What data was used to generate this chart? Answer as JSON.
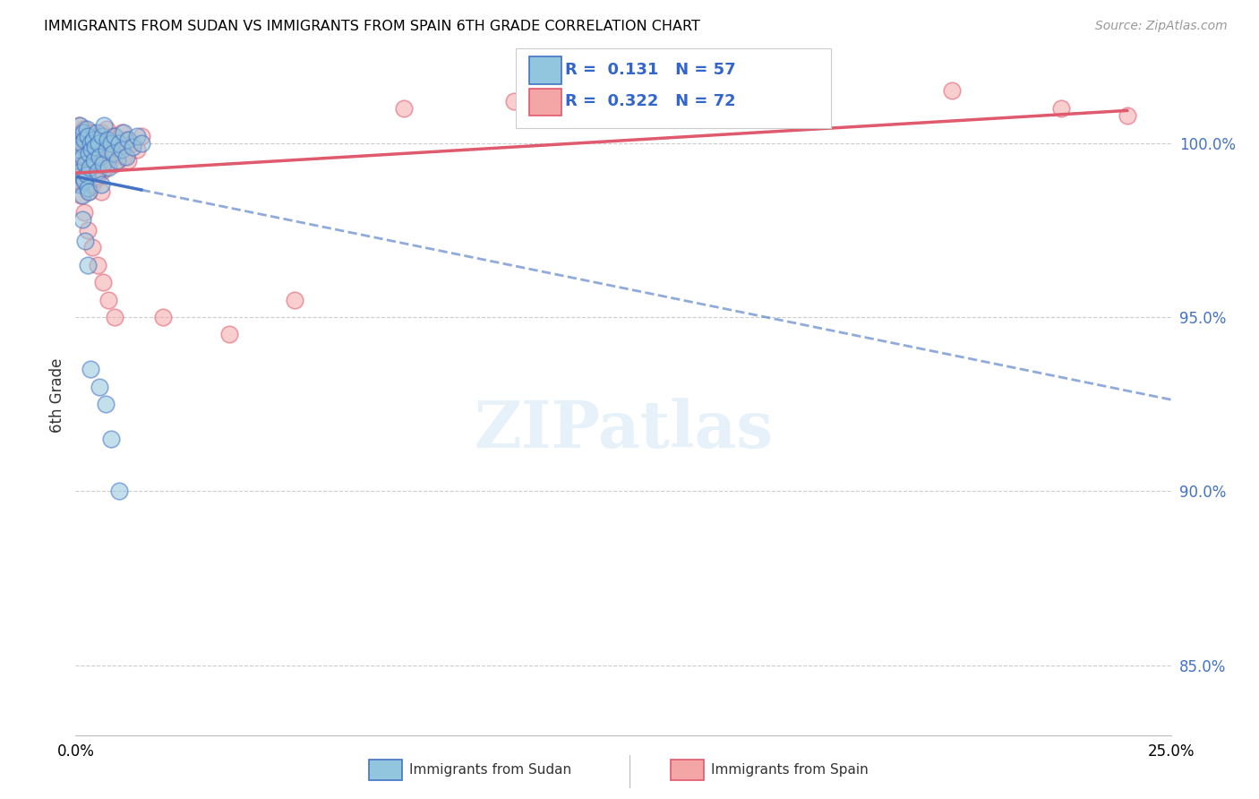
{
  "title": "IMMIGRANTS FROM SUDAN VS IMMIGRANTS FROM SPAIN 6TH GRADE CORRELATION CHART",
  "source": "Source: ZipAtlas.com",
  "ylabel": "6th Grade",
  "xlim": [
    0.0,
    25.0
  ],
  "ylim": [
    83.0,
    102.5
  ],
  "yticks": [
    85.0,
    90.0,
    95.0,
    100.0
  ],
  "ytick_labels": [
    "85.0%",
    "90.0%",
    "95.0%",
    "100.0%"
  ],
  "R_sudan": 0.131,
  "N_sudan": 57,
  "R_spain": 0.322,
  "N_spain": 72,
  "color_sudan": "#92c5de",
  "color_spain": "#f4a6a6",
  "color_sudan_line": "#4472c4",
  "color_spain_line": "#e05a6e",
  "legend_sudan": "Immigrants from Sudan",
  "legend_spain": "Immigrants from Spain",
  "sudan_x": [
    0.05,
    0.07,
    0.08,
    0.1,
    0.1,
    0.12,
    0.13,
    0.15,
    0.15,
    0.17,
    0.18,
    0.2,
    0.2,
    0.22,
    0.25,
    0.25,
    0.27,
    0.28,
    0.3,
    0.3,
    0.32,
    0.35,
    0.37,
    0.4,
    0.42,
    0.45,
    0.48,
    0.5,
    0.52,
    0.55,
    0.58,
    0.6,
    0.63,
    0.65,
    0.7,
    0.72,
    0.75,
    0.8,
    0.85,
    0.9,
    0.95,
    1.0,
    1.05,
    1.1,
    1.15,
    1.2,
    1.3,
    1.4,
    1.5,
    0.15,
    0.22,
    0.28,
    0.35,
    0.55,
    0.68,
    0.8,
    1.0
  ],
  "sudan_y": [
    99.5,
    100.2,
    99.8,
    100.5,
    98.8,
    99.2,
    100.0,
    99.6,
    98.5,
    100.3,
    99.0,
    100.1,
    98.9,
    99.4,
    100.4,
    99.1,
    98.7,
    100.2,
    99.7,
    98.6,
    99.3,
    100.0,
    99.8,
    100.1,
    99.5,
    99.9,
    100.3,
    99.2,
    100.0,
    99.6,
    98.8,
    100.2,
    99.4,
    100.5,
    99.8,
    100.1,
    99.3,
    100.0,
    99.7,
    100.2,
    99.5,
    100.0,
    99.8,
    100.3,
    99.6,
    100.1,
    99.9,
    100.2,
    100.0,
    97.8,
    97.2,
    96.5,
    93.5,
    93.0,
    92.5,
    91.5,
    90.0
  ],
  "spain_x": [
    0.03,
    0.05,
    0.07,
    0.08,
    0.1,
    0.1,
    0.12,
    0.13,
    0.15,
    0.15,
    0.17,
    0.18,
    0.2,
    0.2,
    0.22,
    0.25,
    0.25,
    0.27,
    0.28,
    0.3,
    0.3,
    0.32,
    0.35,
    0.37,
    0.4,
    0.42,
    0.45,
    0.48,
    0.5,
    0.52,
    0.55,
    0.58,
    0.6,
    0.63,
    0.65,
    0.7,
    0.72,
    0.75,
    0.8,
    0.85,
    0.9,
    0.95,
    1.0,
    1.05,
    1.1,
    1.15,
    1.2,
    1.3,
    1.4,
    1.5,
    0.12,
    0.2,
    0.28,
    0.38,
    0.5,
    0.62,
    0.75,
    0.9,
    0.18,
    0.28,
    0.38,
    0.48,
    0.58,
    0.68,
    2.0,
    3.5,
    5.0,
    7.5,
    10.0,
    20.0,
    22.5,
    24.0
  ],
  "spain_y": [
    100.2,
    99.8,
    100.5,
    99.5,
    100.0,
    98.9,
    99.7,
    100.3,
    99.2,
    98.8,
    100.1,
    99.4,
    100.4,
    99.0,
    99.8,
    100.2,
    98.7,
    99.5,
    100.0,
    99.3,
    98.6,
    100.1,
    99.7,
    100.3,
    99.5,
    100.0,
    99.8,
    100.2,
    99.4,
    100.1,
    99.6,
    100.3,
    99.2,
    100.0,
    99.8,
    100.4,
    99.5,
    100.1,
    99.7,
    100.2,
    99.4,
    100.0,
    99.8,
    100.3,
    99.6,
    100.1,
    99.5,
    100.0,
    99.8,
    100.2,
    98.5,
    98.0,
    97.5,
    97.0,
    96.5,
    96.0,
    95.5,
    95.0,
    99.2,
    99.5,
    98.8,
    99.0,
    98.6,
    99.3,
    95.0,
    94.5,
    95.5,
    101.0,
    101.2,
    101.5,
    101.0,
    100.8
  ]
}
